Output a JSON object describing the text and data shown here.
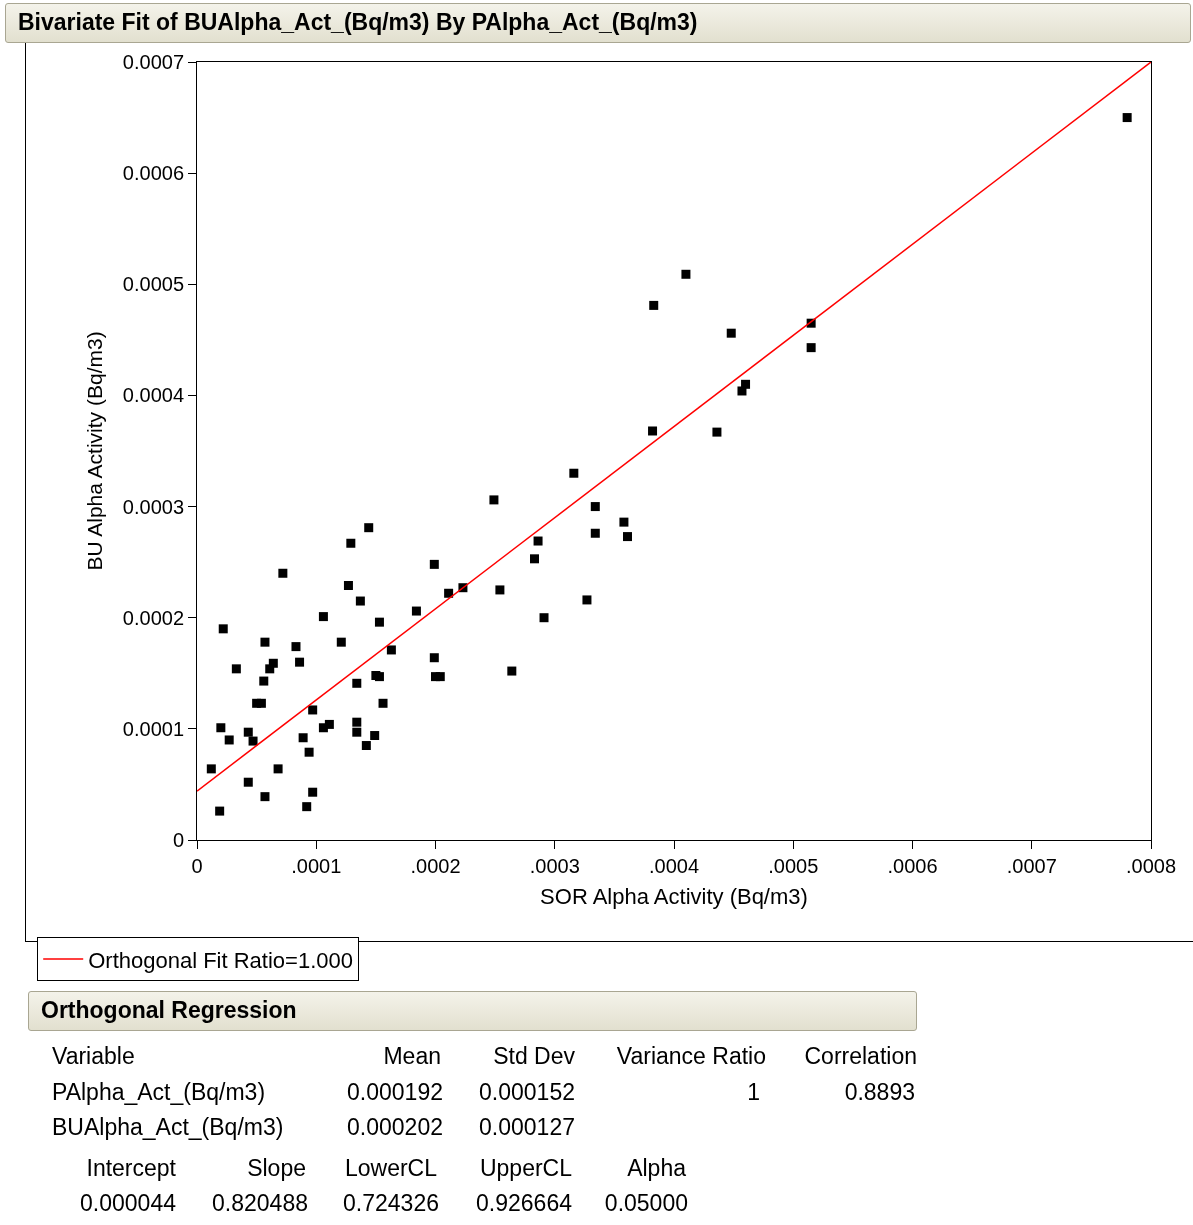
{
  "chart_data": {
    "type": "scatter",
    "title": "Bivariate Fit of BUAlpha_Act_(Bq/m3) By PAlpha_Act_(Bq/m3)",
    "xlabel": "SOR Alpha Activity (Bq/m3)",
    "ylabel": "BU Alpha Activity (Bq/m3)",
    "xlim": [
      0,
      0.0008
    ],
    "ylim": [
      0,
      0.0007
    ],
    "xticks": [
      0,
      {
        "value": 0.0001,
        "label": ".0001"
      },
      {
        "value": 0.0002,
        "label": ".0002"
      },
      {
        "value": 0.0003,
        "label": ".0003"
      },
      {
        "value": 0.0004,
        "label": ".0004"
      },
      {
        "value": 0.0005,
        "label": ".0005"
      },
      {
        "value": 0.0006,
        "label": ".0006"
      },
      {
        "value": 0.0007,
        "label": ".0007"
      },
      {
        "value": 0.0008,
        "label": ".0008"
      }
    ],
    "yticks": [
      0,
      0.0001,
      0.0002,
      0.0003,
      0.0004,
      0.0005,
      0.0006,
      0.0007
    ],
    "grid": false,
    "legend": "bottom left",
    "marker": "square",
    "series": [
      {
        "color": "#000000",
        "x": [
          0.00078,
          0.00041,
          0.000383,
          0.000448,
          0.000515,
          0.000515,
          0.00046,
          0.000457,
          0.000382,
          0.000436,
          0.000316,
          0.000249,
          0.000334,
          0.000358,
          0.000334,
          0.000361,
          0.000286,
          0.000283,
          0.000199,
          0.000223,
          0.000211,
          0.000254,
          0.000327,
          0.000291,
          0.000184,
          0.000264,
          0.000199,
          0.0002,
          0.000204,
          0.000144,
          0.000129,
          7.2e-05,
          0.000127,
          0.000137,
          0.000106,
          0.000153,
          2.2e-05,
          5.7e-05,
          0.000121,
          8.3e-05,
          0.000163,
          8.6e-05,
          6.4e-05,
          6.1e-05,
          3.3e-05,
          5.6e-05,
          0.00015,
          0.000153,
          0.000134,
          5e-05,
          5.4e-05,
          0.000156,
          9.7e-05,
          2e-05,
          0.000106,
          0.000111,
          0.000134,
          0.000134,
          4.3e-05,
          2.7e-05,
          4.7e-05,
          0.000149,
          8.9e-05,
          0.000142,
          9.4e-05,
          1.2e-05,
          6.8e-05,
          4.3e-05,
          9.7e-05,
          5.7e-05,
          9.2e-05,
          1.9e-05
        ],
        "values": [
          0.00065,
          0.000509,
          0.000481,
          0.000456,
          0.000465,
          0.000443,
          0.00041,
          0.000404,
          0.000368,
          0.000367,
          0.00033,
          0.000306,
          0.0003,
          0.000286,
          0.000276,
          0.000273,
          0.000269,
          0.000253,
          0.000248,
          0.000227,
          0.000222,
          0.000225,
          0.000216,
          0.0002,
          0.000206,
          0.000152,
          0.000164,
          0.000147,
          0.000147,
          0.000281,
          0.000267,
          0.00024,
          0.000229,
          0.000215,
          0.000201,
          0.000196,
          0.00019,
          0.000178,
          0.000178,
          0.000174,
          0.000171,
          0.00016,
          0.000159,
          0.000154,
          0.000154,
          0.000143,
          0.000148,
          0.000147,
          0.000141,
          0.000123,
          0.000123,
          0.000123,
          0.000117,
          0.000101,
          0.000101,
          0.000104,
          0.000106,
          9.7e-05,
          9.7e-05,
          9e-05,
          8.9e-05,
          9.4e-05,
          9.2e-05,
          8.5e-05,
          7.9e-05,
          6.4e-05,
          6.4e-05,
          5.2e-05,
          4.3e-05,
          3.9e-05,
          3e-05,
          2.6e-05
        ]
      },
      {
        "type": "line",
        "name": "Orthogonal Fit Ratio=1.000",
        "color": "#ff0000",
        "marker": "none",
        "line_style": "solid",
        "x": [
          0,
          0.0008
        ],
        "values": [
          4.4e-05,
          0.0007
        ]
      }
    ],
    "annotations": [
      "Orthogonal Regression",
      "Variable",
      "Mean",
      "Std Dev",
      "Variance Ratio",
      "Correlation",
      "PAlpha_Act_(Bq/m3)",
      "0.000192",
      "0.000152",
      "1",
      "0.8893",
      "BUAlpha_Act_(Bq/m3)",
      "0.000202",
      "0.000127",
      "Intercept",
      "Slope",
      "LowerCL",
      "UpperCL",
      "Alpha",
      "0.000044",
      "0.820488",
      "0.724326",
      "0.926664",
      "0.05000"
    ]
  }
}
